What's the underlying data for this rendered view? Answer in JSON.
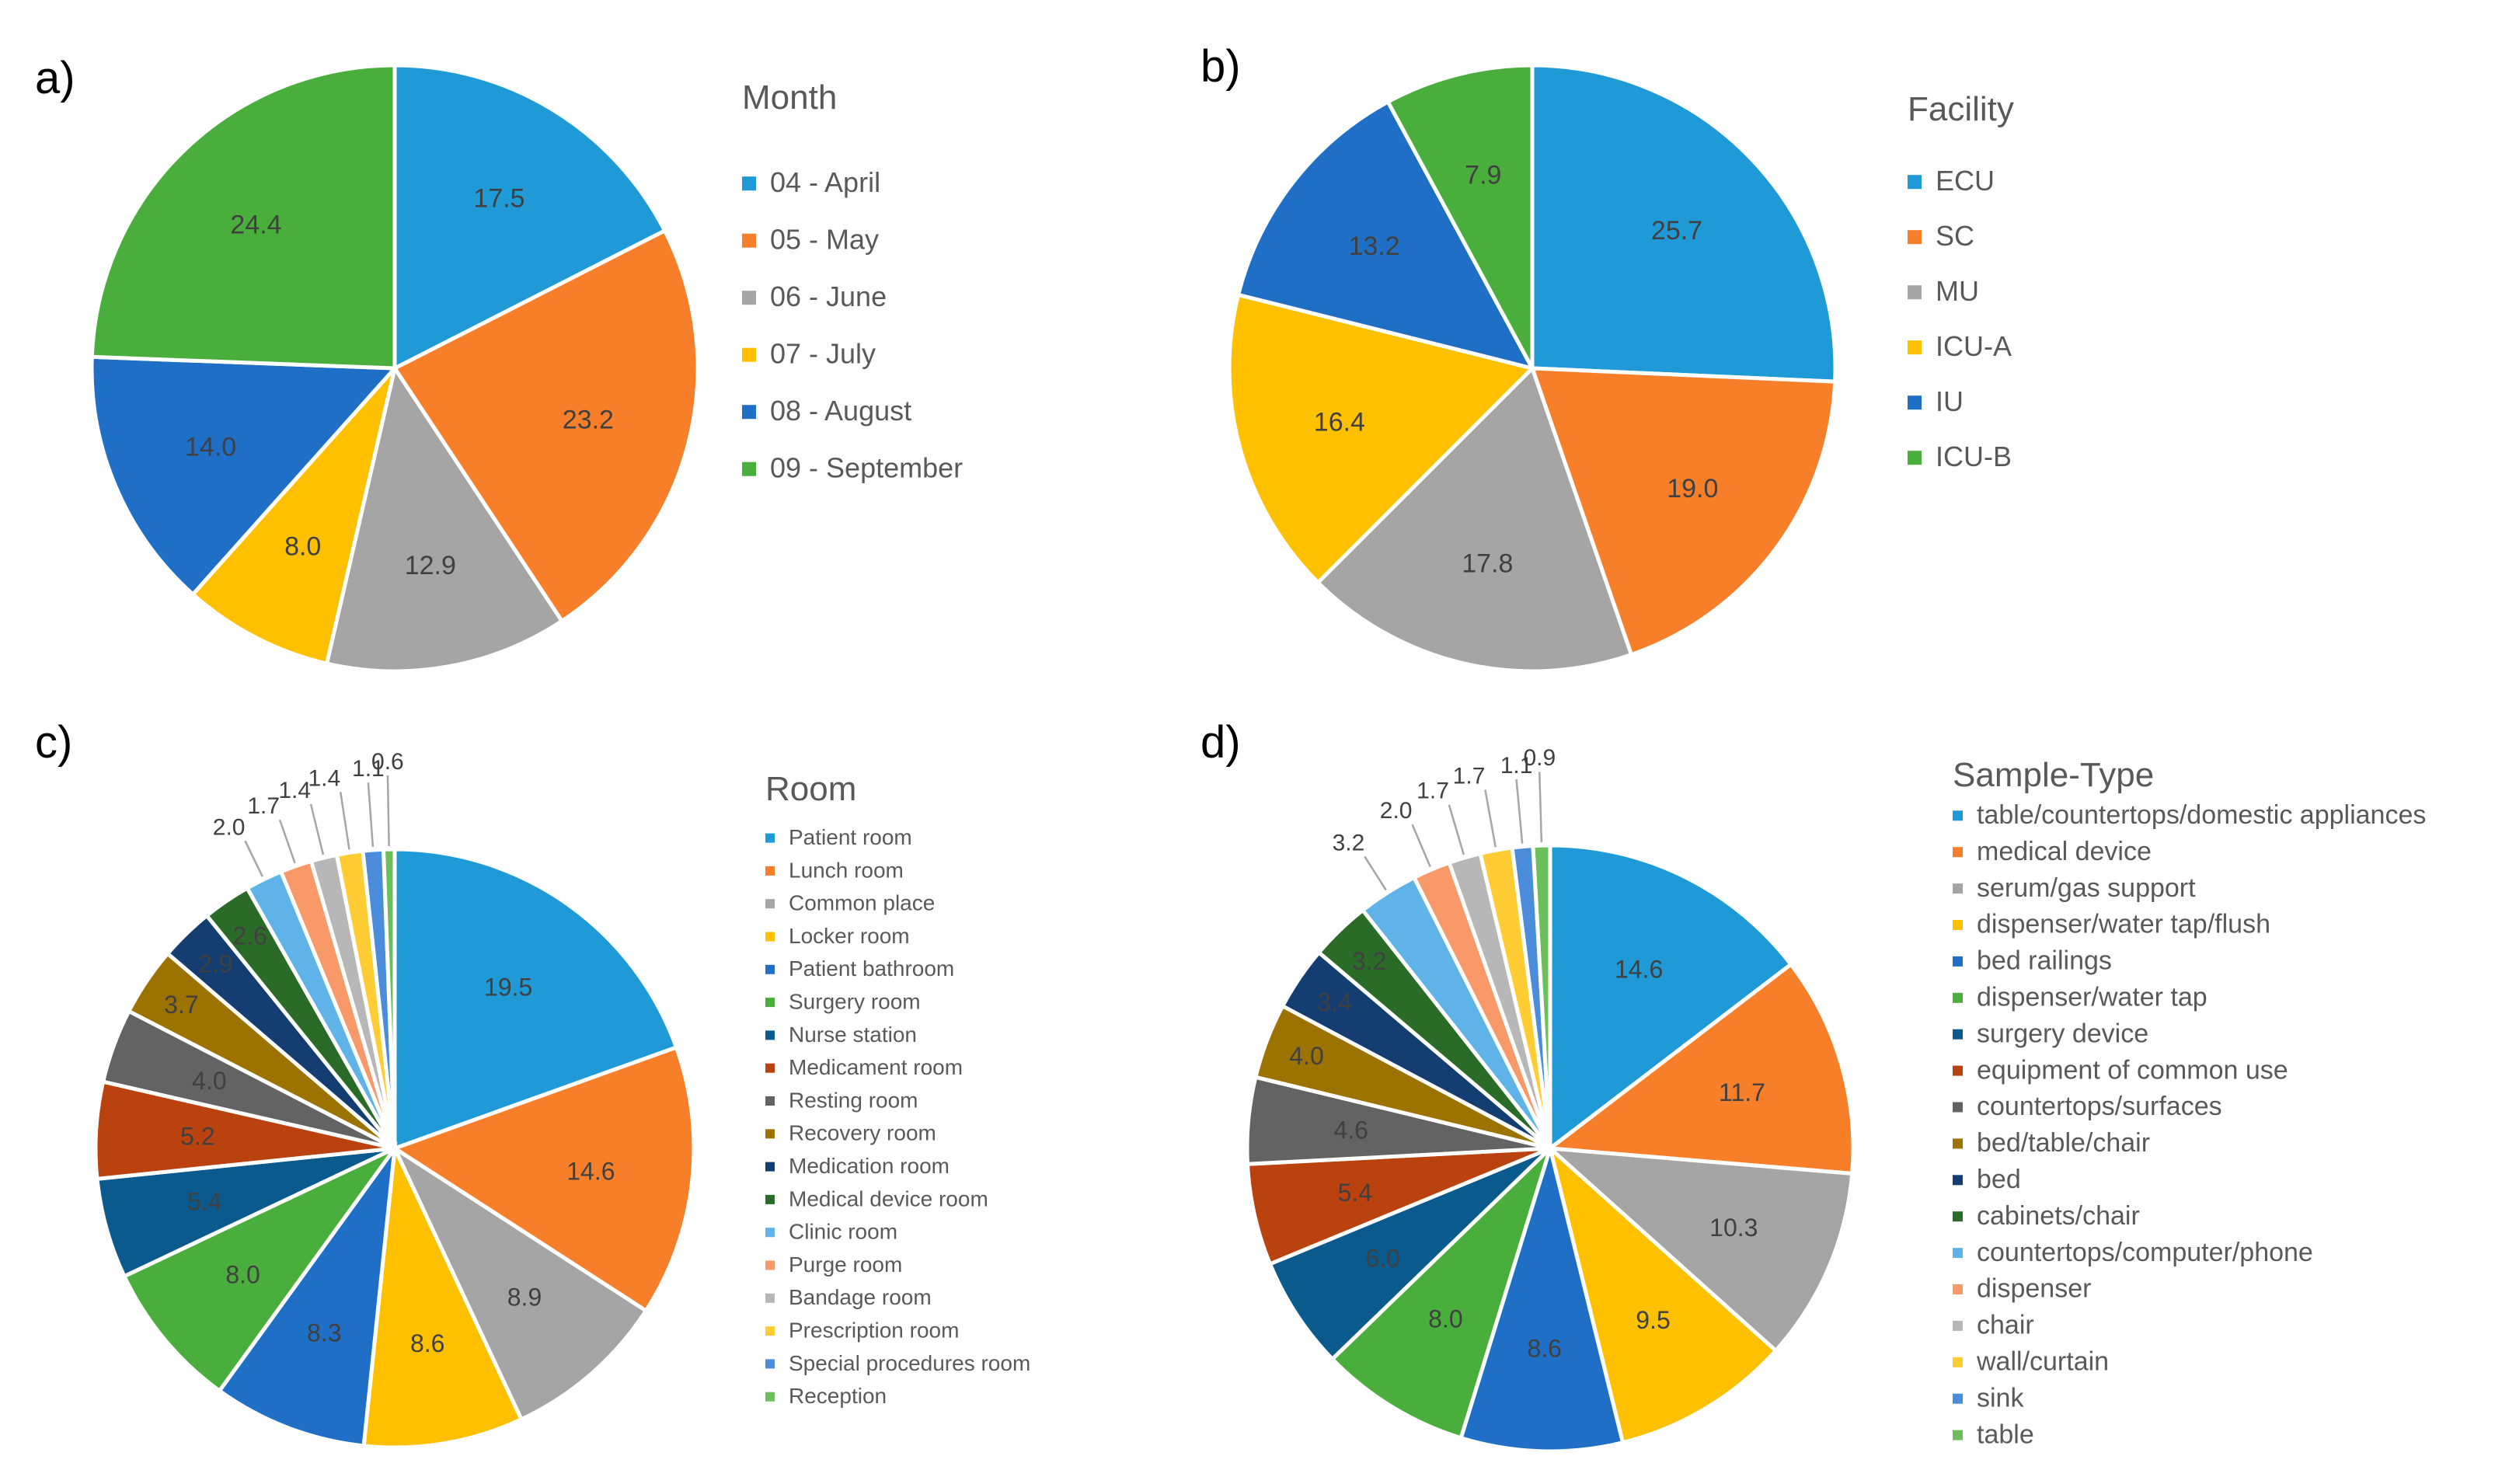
{
  "chart_data": [
    {
      "type": "pie",
      "panel": "a)",
      "legend_title": "Month",
      "categories": [
        "04 - April",
        "05 - May",
        "06 - June",
        "07 - July",
        "08 - August",
        "09 - September"
      ],
      "values": [
        17.5,
        23.2,
        12.9,
        8.0,
        14.0,
        24.4
      ],
      "labels": [
        "17.5",
        "23.2",
        "12.9",
        "8.0",
        "14.0",
        "24.4"
      ],
      "colors": [
        "#1f9ad6",
        "#f77f2a",
        "#a5a5a5",
        "#ffc000",
        "#1f6fc6",
        "#4aae3d"
      ]
    },
    {
      "type": "pie",
      "panel": "b)",
      "legend_title": "Facility",
      "categories": [
        "ECU",
        "SC",
        "MU",
        "ICU-A",
        "IU",
        "ICU-B"
      ],
      "values": [
        25.7,
        19.0,
        17.8,
        16.4,
        13.2,
        7.9
      ],
      "labels": [
        "25.7",
        "19.0",
        "17.8",
        "16.4",
        "13.2",
        "7.9"
      ],
      "colors": [
        "#1f9ad6",
        "#f77f2a",
        "#a5a5a5",
        "#ffc000",
        "#1f6fc6",
        "#4aae3d"
      ]
    },
    {
      "type": "pie",
      "panel": "c)",
      "legend_title": "Room",
      "categories": [
        "Patient room",
        "Lunch room",
        "Common place",
        "Locker room",
        "Patient bathroom",
        "Surgery room",
        "Nurse station",
        "Medicament room",
        "Resting room",
        "Recovery room",
        "Medication room",
        "Medical device room",
        "Clinic room",
        "Purge room",
        "Bandage room",
        "Prescription room",
        "Special procedures room",
        "Reception"
      ],
      "values": [
        19.5,
        14.6,
        8.9,
        8.6,
        8.3,
        8.0,
        5.4,
        5.2,
        4.0,
        3.7,
        2.9,
        2.6,
        2.0,
        1.7,
        1.4,
        1.4,
        1.1,
        0.6
      ],
      "labels": [
        "19.5",
        "14.6",
        "8.9",
        "8.6",
        "8.3",
        "8.0",
        "5.4",
        "5.2",
        "4.0",
        "3.7",
        "2.9",
        "2.6",
        "2.0",
        "1.7",
        "1.4",
        "1.4",
        "1.1",
        "0.6"
      ],
      "colors": [
        "#1f9ad6",
        "#f77f2a",
        "#a5a5a5",
        "#ffc000",
        "#1f6fc6",
        "#4aae3d",
        "#0b5a8e",
        "#b9420e",
        "#636363",
        "#9c7200",
        "#143d72",
        "#2a6b28",
        "#5fb3e8",
        "#f9996a",
        "#b7b7b7",
        "#ffcd33",
        "#4c8ddb",
        "#6dbf5b"
      ]
    },
    {
      "type": "pie",
      "panel": "d)",
      "legend_title": "Sample-Type",
      "categories": [
        "table/countertops/domestic appliances",
        "medical device",
        "serum/gas support",
        "dispenser/water tap/flush",
        "bed railings",
        "dispenser/water tap",
        "surgery device",
        "equipment of common use",
        "countertops/surfaces",
        "bed/table/chair",
        "bed",
        "cabinets/chair",
        "countertops/computer/phone",
        "dispenser",
        "chair",
        "wall/curtain",
        "sink",
        "table"
      ],
      "values": [
        14.6,
        11.7,
        10.3,
        9.5,
        8.6,
        8.0,
        6.0,
        5.4,
        4.6,
        4.0,
        3.4,
        3.2,
        3.2,
        2.0,
        1.7,
        1.7,
        1.1,
        0.9
      ],
      "labels": [
        "14.6",
        "11.7",
        "10.3",
        "9.5",
        "8.6",
        "8.0",
        "6.0",
        "5.4",
        "4.6",
        "4.0",
        "3.4",
        "3.2",
        "3.2",
        "2.0",
        "1.7",
        "1.7",
        "1.1",
        "0.9"
      ],
      "colors": [
        "#1f9ad6",
        "#f77f2a",
        "#a5a5a5",
        "#ffc000",
        "#1f6fc6",
        "#4aae3d",
        "#0b5a8e",
        "#b9420e",
        "#636363",
        "#9c7200",
        "#143d72",
        "#2a6b28",
        "#5fb3e8",
        "#f9996a",
        "#b7b7b7",
        "#ffcd33",
        "#4c8ddb",
        "#6dbf5b"
      ]
    }
  ]
}
